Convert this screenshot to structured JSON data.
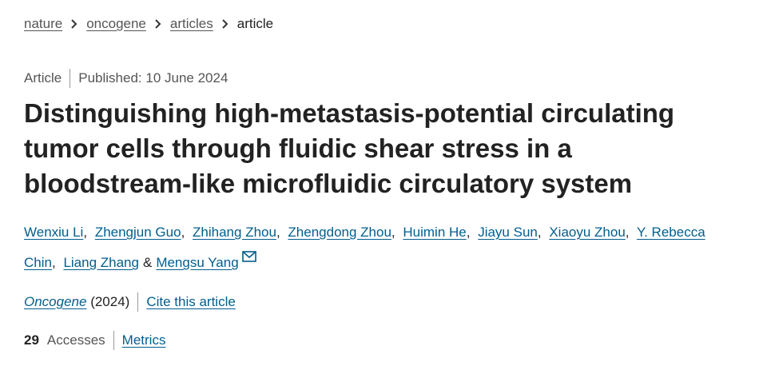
{
  "breadcrumb": [
    "nature",
    "oncogene",
    "articles",
    "article"
  ],
  "article_type": "Article",
  "published": {
    "label": "Published:",
    "date": "10 June 2024"
  },
  "title_lines": [
    "Distinguishing high-metastasis-potential circulating",
    "tumor cells through fluidic shear stress in a",
    "bloodstream-like microfluidic circulatory system"
  ],
  "authors": [
    {
      "name": "Wenxiu Li",
      "separator": ","
    },
    {
      "name": "Zhengjun Guo",
      "separator": ","
    },
    {
      "name": "Zhihang Zhou",
      "separator": ","
    },
    {
      "name": "Zhengdong Zhou",
      "separator": ","
    },
    {
      "name": "Huimin He",
      "separator": ","
    },
    {
      "name": "Jiayu Sun",
      "separator": ","
    },
    {
      "name": "Xiaoyu Zhou",
      "separator": ","
    },
    {
      "name": "Y. Rebecca Chin",
      "separator": ","
    },
    {
      "name": "Liang Zhang",
      "separator": "&"
    },
    {
      "name": "Mengsu Yang"
    }
  ],
  "journal": {
    "name": "Oncogene",
    "year": "(2024)",
    "cite": "Cite this article"
  },
  "metrics": {
    "count": "29",
    "label": "Accesses",
    "link": "Metrics"
  }
}
